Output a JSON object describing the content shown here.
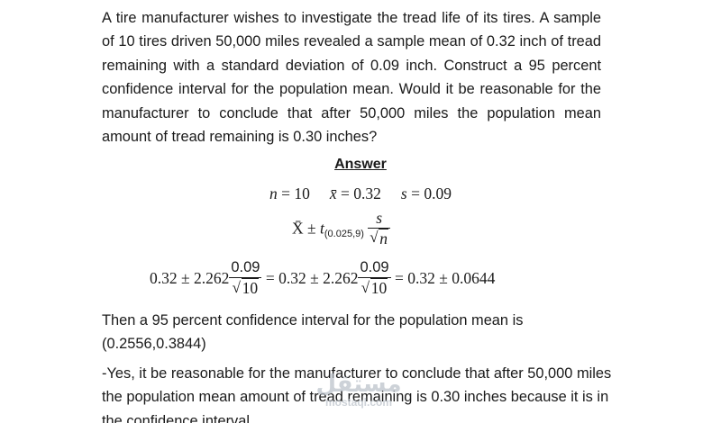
{
  "problem": {
    "text": "A tire manufacturer wishes to investigate the tread life of its tires. A sample of 10 tires driven 50,000 miles revealed a sample mean of 0.32 inch of tread remaining with a standard deviation of 0.09 inch. Construct a 95 percent confidence interval for the population mean. Would it be reasonable for the manufacturer to conclude that after 50,000 miles the population mean amount of tread remaining is 0.30 inches?"
  },
  "answer": {
    "heading": "Answer",
    "givens": {
      "n_label": "n",
      "n_value": "= 10",
      "xbar_label": "x̄",
      "xbar_value": "= 0.32",
      "s_label": "s",
      "s_value": "= 0.09"
    },
    "formula": {
      "xbar": "X̄",
      "pm": " ± ",
      "t": "t",
      "t_subscript": "(0.025,9)",
      "numerator": "s",
      "denominator": "n"
    },
    "computation": {
      "lead": "0.32 ± 2.262",
      "frac1_num": "0.09",
      "frac1_den": "10",
      "mid": " = 0.32 ± 2.262",
      "frac2_num": "0.09",
      "frac2_den": "10",
      "result": " = 0.32 ± 0.0644"
    },
    "interval_text": "Then a 95 percent confidence interval for the population mean is (0.2556,0.3844)",
    "conclusion_text": "-Yes, it be reasonable for the manufacturer to conclude that after 50,000 miles the population mean amount of tread remaining is 0.30 inches because it is in the confidence interval"
  },
  "watermark": {
    "arabic": "مستقل",
    "url": "mostaql.com"
  }
}
